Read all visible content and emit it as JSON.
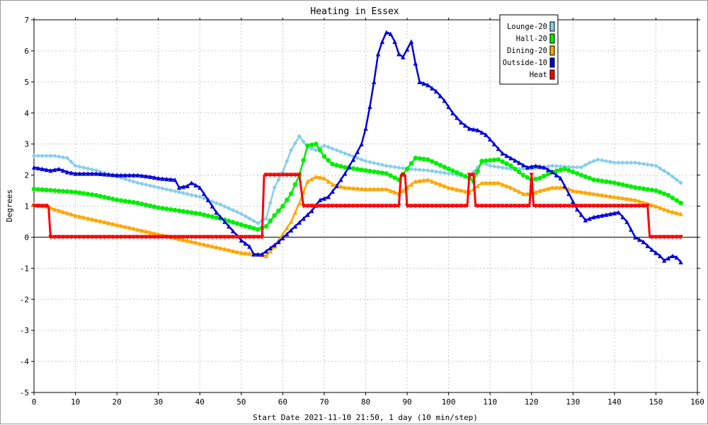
{
  "chart_data": {
    "type": "line",
    "title": "Heating in Essex",
    "xlabel": "Start Date 2021-11-10 21:50, 1 day (10 min/step)",
    "ylabel": "Degrees",
    "xlim": [
      0,
      160
    ],
    "ylim": [
      -5,
      7
    ],
    "x_ticks": [
      0,
      10,
      20,
      30,
      40,
      50,
      60,
      70,
      80,
      90,
      100,
      110,
      120,
      130,
      140,
      150,
      160
    ],
    "y_ticks": [
      -5,
      -4,
      -3,
      -2,
      -1,
      0,
      1,
      2,
      3,
      4,
      5,
      6,
      7
    ],
    "grid": true,
    "legend_position": "top-right",
    "series": [
      {
        "name": "Lounge-20",
        "color": "#87ceeb",
        "marker": "diamond",
        "points": [
          [
            0,
            2.62
          ],
          [
            5,
            2.62
          ],
          [
            8,
            2.55
          ],
          [
            10,
            2.3
          ],
          [
            15,
            2.15
          ],
          [
            20,
            1.95
          ],
          [
            25,
            1.75
          ],
          [
            30,
            1.6
          ],
          [
            35,
            1.45
          ],
          [
            40,
            1.3
          ],
          [
            45,
            1.05
          ],
          [
            50,
            0.75
          ],
          [
            54,
            0.45
          ],
          [
            56,
            0.6
          ],
          [
            58,
            1.6
          ],
          [
            60,
            2.1
          ],
          [
            62,
            2.8
          ],
          [
            64,
            3.25
          ],
          [
            66,
            2.9
          ],
          [
            68,
            2.8
          ],
          [
            70,
            2.95
          ],
          [
            72,
            2.85
          ],
          [
            75,
            2.7
          ],
          [
            80,
            2.45
          ],
          [
            85,
            2.3
          ],
          [
            90,
            2.2
          ],
          [
            95,
            2.15
          ],
          [
            100,
            2.05
          ],
          [
            105,
            1.95
          ],
          [
            108,
            2.4
          ],
          [
            110,
            2.3
          ],
          [
            115,
            2.2
          ],
          [
            120,
            2.2
          ],
          [
            125,
            2.3
          ],
          [
            130,
            2.25
          ],
          [
            132,
            2.25
          ],
          [
            134,
            2.4
          ],
          [
            136,
            2.5
          ],
          [
            140,
            2.4
          ],
          [
            145,
            2.4
          ],
          [
            150,
            2.3
          ],
          [
            153,
            2.05
          ],
          [
            156,
            1.75
          ]
        ]
      },
      {
        "name": "Hall-20",
        "color": "#00ee00",
        "marker": "circle",
        "points": [
          [
            0,
            1.55
          ],
          [
            5,
            1.5
          ],
          [
            10,
            1.45
          ],
          [
            15,
            1.35
          ],
          [
            20,
            1.2
          ],
          [
            25,
            1.1
          ],
          [
            30,
            0.95
          ],
          [
            35,
            0.85
          ],
          [
            40,
            0.75
          ],
          [
            45,
            0.6
          ],
          [
            50,
            0.4
          ],
          [
            54,
            0.25
          ],
          [
            56,
            0.35
          ],
          [
            58,
            0.7
          ],
          [
            60,
            1.0
          ],
          [
            62,
            1.4
          ],
          [
            64,
            2.0
          ],
          [
            66,
            2.95
          ],
          [
            68,
            3.0
          ],
          [
            70,
            2.6
          ],
          [
            72,
            2.35
          ],
          [
            75,
            2.25
          ],
          [
            80,
            2.15
          ],
          [
            85,
            2.05
          ],
          [
            88,
            1.85
          ],
          [
            90,
            2.2
          ],
          [
            92,
            2.55
          ],
          [
            95,
            2.5
          ],
          [
            100,
            2.2
          ],
          [
            105,
            1.9
          ],
          [
            106,
            1.8
          ],
          [
            108,
            2.45
          ],
          [
            112,
            2.5
          ],
          [
            115,
            2.3
          ],
          [
            118,
            2.0
          ],
          [
            120,
            1.85
          ],
          [
            122,
            1.9
          ],
          [
            125,
            2.1
          ],
          [
            128,
            2.2
          ],
          [
            130,
            2.1
          ],
          [
            135,
            1.85
          ],
          [
            140,
            1.75
          ],
          [
            145,
            1.6
          ],
          [
            150,
            1.5
          ],
          [
            153,
            1.35
          ],
          [
            156,
            1.1
          ]
        ]
      },
      {
        "name": "Dining-20",
        "color": "#ffa500",
        "marker": "triangle",
        "points": [
          [
            0,
            1.05
          ],
          [
            3,
            1.0
          ],
          [
            5,
            0.9
          ],
          [
            10,
            0.7
          ],
          [
            15,
            0.55
          ],
          [
            20,
            0.4
          ],
          [
            25,
            0.25
          ],
          [
            30,
            0.1
          ],
          [
            35,
            -0.05
          ],
          [
            40,
            -0.2
          ],
          [
            45,
            -0.35
          ],
          [
            50,
            -0.5
          ],
          [
            54,
            -0.55
          ],
          [
            56,
            -0.6
          ],
          [
            58,
            -0.3
          ],
          [
            60,
            0.1
          ],
          [
            62,
            0.5
          ],
          [
            64,
            1.1
          ],
          [
            66,
            1.8
          ],
          [
            68,
            1.95
          ],
          [
            70,
            1.9
          ],
          [
            72,
            1.7
          ],
          [
            75,
            1.6
          ],
          [
            80,
            1.55
          ],
          [
            85,
            1.55
          ],
          [
            88,
            1.4
          ],
          [
            90,
            1.6
          ],
          [
            92,
            1.8
          ],
          [
            95,
            1.85
          ],
          [
            100,
            1.6
          ],
          [
            105,
            1.45
          ],
          [
            108,
            1.75
          ],
          [
            112,
            1.75
          ],
          [
            115,
            1.6
          ],
          [
            118,
            1.4
          ],
          [
            120,
            1.4
          ],
          [
            122,
            1.5
          ],
          [
            125,
            1.6
          ],
          [
            128,
            1.6
          ],
          [
            130,
            1.5
          ],
          [
            135,
            1.4
          ],
          [
            140,
            1.3
          ],
          [
            145,
            1.2
          ],
          [
            150,
            1.0
          ],
          [
            153,
            0.85
          ],
          [
            156,
            0.75
          ]
        ]
      },
      {
        "name": "Outside-10",
        "color": "#0000dd",
        "marker": "triangle",
        "points": [
          [
            0,
            2.25
          ],
          [
            2,
            2.2
          ],
          [
            4,
            2.15
          ],
          [
            6,
            2.2
          ],
          [
            8,
            2.1
          ],
          [
            10,
            2.05
          ],
          [
            15,
            2.05
          ],
          [
            20,
            2.0
          ],
          [
            25,
            2.0
          ],
          [
            28,
            1.95
          ],
          [
            30,
            1.9
          ],
          [
            34,
            1.85
          ],
          [
            35,
            1.6
          ],
          [
            37,
            1.65
          ],
          [
            38,
            1.75
          ],
          [
            40,
            1.6
          ],
          [
            42,
            1.2
          ],
          [
            44,
            0.8
          ],
          [
            46,
            0.5
          ],
          [
            48,
            0.2
          ],
          [
            50,
            -0.1
          ],
          [
            52,
            -0.3
          ],
          [
            53,
            -0.55
          ],
          [
            55,
            -0.55
          ],
          [
            57,
            -0.35
          ],
          [
            59,
            -0.15
          ],
          [
            61,
            0.1
          ],
          [
            63,
            0.35
          ],
          [
            65,
            0.6
          ],
          [
            67,
            0.85
          ],
          [
            69,
            1.2
          ],
          [
            71,
            1.3
          ],
          [
            73,
            1.65
          ],
          [
            75,
            2.05
          ],
          [
            77,
            2.5
          ],
          [
            79,
            3.0
          ],
          [
            80,
            3.5
          ],
          [
            81,
            4.2
          ],
          [
            82,
            5.0
          ],
          [
            83,
            5.9
          ],
          [
            84,
            6.3
          ],
          [
            85,
            6.6
          ],
          [
            86,
            6.55
          ],
          [
            87,
            6.3
          ],
          [
            88,
            5.9
          ],
          [
            89,
            5.8
          ],
          [
            90,
            6.05
          ],
          [
            91,
            6.3
          ],
          [
            92,
            5.6
          ],
          [
            93,
            5.0
          ],
          [
            95,
            4.9
          ],
          [
            97,
            4.7
          ],
          [
            99,
            4.4
          ],
          [
            101,
            4.0
          ],
          [
            103,
            3.7
          ],
          [
            105,
            3.5
          ],
          [
            107,
            3.45
          ],
          [
            109,
            3.3
          ],
          [
            111,
            3.0
          ],
          [
            113,
            2.7
          ],
          [
            115,
            2.55
          ],
          [
            117,
            2.4
          ],
          [
            119,
            2.25
          ],
          [
            121,
            2.3
          ],
          [
            123,
            2.25
          ],
          [
            125,
            2.1
          ],
          [
            127,
            1.9
          ],
          [
            129,
            1.4
          ],
          [
            131,
            0.9
          ],
          [
            133,
            0.55
          ],
          [
            135,
            0.65
          ],
          [
            137,
            0.7
          ],
          [
            139,
            0.75
          ],
          [
            141,
            0.8
          ],
          [
            143,
            0.5
          ],
          [
            145,
            0.0
          ],
          [
            147,
            -0.15
          ],
          [
            149,
            -0.4
          ],
          [
            151,
            -0.6
          ],
          [
            152,
            -0.75
          ],
          [
            154,
            -0.6
          ],
          [
            155,
            -0.65
          ],
          [
            156,
            -0.8
          ]
        ]
      },
      {
        "name": "Heat",
        "color": "#ff0000",
        "marker": "triangle-down",
        "points": [
          [
            0,
            1
          ],
          [
            3.5,
            1
          ],
          [
            4,
            0
          ],
          [
            55,
            0
          ],
          [
            55.5,
            2
          ],
          [
            64,
            2
          ],
          [
            65,
            1
          ],
          [
            88,
            1
          ],
          [
            88.5,
            2
          ],
          [
            89.5,
            2
          ],
          [
            90,
            1
          ],
          [
            104.5,
            1
          ],
          [
            105,
            2
          ],
          [
            106,
            2
          ],
          [
            106.5,
            1
          ],
          [
            119.5,
            1
          ],
          [
            120,
            2
          ],
          [
            120.5,
            1
          ],
          [
            148,
            1
          ],
          [
            148.5,
            0
          ],
          [
            156,
            0
          ]
        ]
      }
    ]
  }
}
